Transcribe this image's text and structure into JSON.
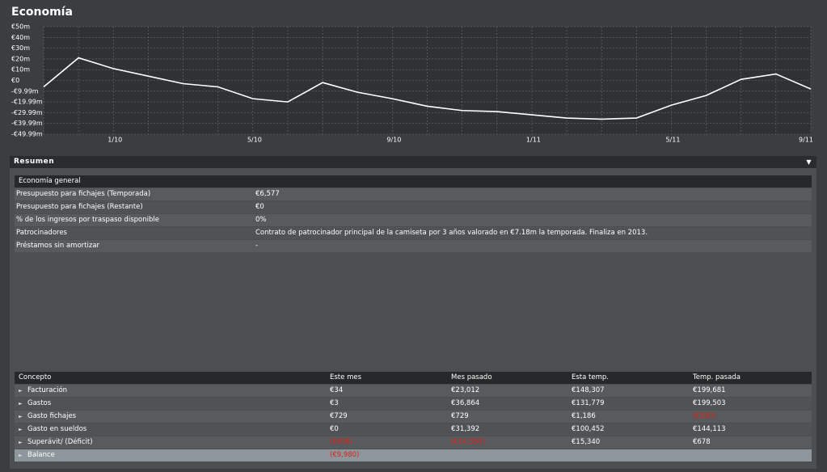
{
  "header": {
    "title": "Economía"
  },
  "chart_data": {
    "type": "line",
    "categories": [
      null,
      null,
      "1/10",
      null,
      null,
      null,
      "5/10",
      null,
      null,
      null,
      "9/10",
      null,
      null,
      null,
      "1/11",
      null,
      null,
      null,
      "5/11",
      null,
      null,
      null,
      "9/11"
    ],
    "values": [
      -6,
      21,
      11,
      4,
      -3,
      -6,
      -17,
      -20,
      -2,
      -11,
      -17,
      -24,
      -28,
      -29,
      -32,
      -35,
      -36,
      -35,
      -23,
      -14,
      1,
      6,
      -8
    ],
    "color": "#ffffff",
    "ylim": [
      -49.99,
      50
    ],
    "yticks": [
      {
        "value": 50,
        "label": "€50m"
      },
      {
        "value": 40,
        "label": "€40m"
      },
      {
        "value": 30,
        "label": "€30m"
      },
      {
        "value": 20,
        "label": "€20m"
      },
      {
        "value": 10,
        "label": "€10m"
      },
      {
        "value": 0,
        "label": "€0"
      },
      {
        "value": -9.99,
        "label": "-€9.99m"
      },
      {
        "value": -19.99,
        "label": "-€19.99m"
      },
      {
        "value": -29.99,
        "label": "-€29.99m"
      },
      {
        "value": -39.99,
        "label": "-€39.99m"
      },
      {
        "value": -49.99,
        "label": "-€49.99m"
      }
    ],
    "grid": true
  },
  "summary": {
    "title": "Resumen",
    "general": {
      "title": "Economía general",
      "rows": [
        [
          "Presupuesto para fichajes (Temporada)",
          "€6,577"
        ],
        [
          "Presupuesto para fichajes (Restante)",
          "€0"
        ],
        [
          "% de los ingresos por traspaso disponible",
          "0%"
        ],
        [
          "Patrocinadores",
          "Contrato de patrocinador principal de la camiseta por 3 años valorado en €7.18m la temporada. Finaliza en 2013."
        ],
        [
          "Préstamos sin amortizar",
          "-"
        ]
      ]
    },
    "table": {
      "columns": [
        "Concepto",
        "Este mes",
        "Mes pasado",
        "Esta temp.",
        "Temp. pasada"
      ],
      "rows": [
        [
          "Facturación",
          "€34",
          "€23,012",
          "€148,307",
          "€199,681"
        ],
        [
          "Gastos",
          "€3",
          "€36,864",
          "€131,779",
          "€199,503"
        ],
        [
          "Gasto fichajes",
          "€729",
          "€729",
          "€1,186",
          "(€500)"
        ],
        [
          "Gasto en sueldos",
          "€0",
          "€31,392",
          "€100,452",
          "€144,113"
        ],
        [
          "Superávit/ (Déficit)",
          "(€698)",
          "(€14,580)",
          "€15,340",
          "€678"
        ],
        [
          "Balance",
          "(€9,980)",
          null,
          null,
          null
        ]
      ]
    }
  }
}
